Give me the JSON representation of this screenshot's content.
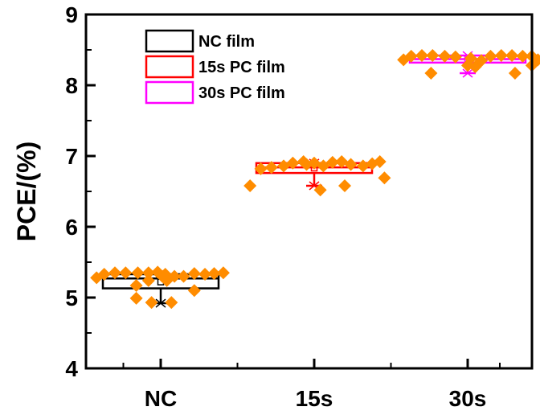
{
  "chart_data": {
    "type": "box",
    "title": "",
    "xlabel": "",
    "ylabel": "PCE/(%)",
    "ylim": [
      4,
      9
    ],
    "yticks": [
      "4",
      "5",
      "6",
      "7",
      "8",
      "9"
    ],
    "categories": [
      "NC",
      "15s",
      "30s"
    ],
    "grid": false,
    "legend_position": "top-left",
    "point_color": "#ff8c00",
    "series": [
      {
        "name": "NC film",
        "category": "NC",
        "color": "#000000",
        "box": {
          "q1": 5.13,
          "median": 5.27,
          "q3": 5.33,
          "whisker_low": 4.92,
          "whisker_high": 5.33,
          "mean": 5.22
        },
        "points": [
          [
            -0.42,
            5.28
          ],
          [
            -0.37,
            5.33
          ],
          [
            -0.3,
            5.35
          ],
          [
            -0.23,
            5.35
          ],
          [
            -0.15,
            5.35
          ],
          [
            -0.08,
            5.35
          ],
          [
            -0.02,
            5.36
          ],
          [
            0.03,
            5.33
          ],
          [
            0.09,
            5.3
          ],
          [
            0.15,
            5.3
          ],
          [
            0.22,
            5.34
          ],
          [
            0.29,
            5.33
          ],
          [
            0.35,
            5.34
          ],
          [
            0.41,
            5.35
          ],
          [
            -0.16,
            5.17
          ],
          [
            0.04,
            5.24
          ],
          [
            -0.08,
            5.24
          ],
          [
            0.22,
            5.1
          ],
          [
            -0.16,
            4.99
          ],
          [
            -0.06,
            4.93
          ],
          [
            0.07,
            4.93
          ],
          [
            0.01,
            5.3
          ]
        ]
      },
      {
        "name": "15s PC film",
        "category": "15s",
        "color": "#ff0000",
        "box": {
          "q1": 6.76,
          "median": 6.84,
          "q3": 6.9,
          "whisker_low": 6.58,
          "whisker_high": 6.9,
          "mean": 6.83
        },
        "points": [
          [
            -0.42,
            6.58
          ],
          [
            -0.35,
            6.82
          ],
          [
            -0.28,
            6.84
          ],
          [
            -0.2,
            6.86
          ],
          [
            -0.14,
            6.9
          ],
          [
            -0.07,
            6.92
          ],
          [
            0.0,
            6.9
          ],
          [
            0.06,
            6.86
          ],
          [
            0.12,
            6.91
          ],
          [
            0.18,
            6.92
          ],
          [
            0.24,
            6.88
          ],
          [
            0.32,
            6.86
          ],
          [
            0.38,
            6.89
          ],
          [
            0.43,
            6.92
          ],
          [
            0.04,
            6.52
          ],
          [
            0.2,
            6.58
          ],
          [
            0.46,
            6.69
          ],
          [
            -0.05,
            6.88
          ]
        ]
      },
      {
        "name": "30s PC film",
        "category": "30s",
        "color": "#ff00ff",
        "box": {
          "q1": 8.32,
          "median": 8.37,
          "q3": 8.42,
          "whisker_low": 8.17,
          "whisker_high": 8.42,
          "mean": 8.38
        },
        "points": [
          [
            -0.42,
            8.36
          ],
          [
            -0.37,
            8.41
          ],
          [
            -0.3,
            8.42
          ],
          [
            -0.23,
            8.42
          ],
          [
            -0.15,
            8.41
          ],
          [
            -0.08,
            8.4
          ],
          [
            0.02,
            8.38
          ],
          [
            0.09,
            8.35
          ],
          [
            0.15,
            8.41
          ],
          [
            0.22,
            8.42
          ],
          [
            0.29,
            8.42
          ],
          [
            0.36,
            8.41
          ],
          [
            0.42,
            8.41
          ],
          [
            0.46,
            8.36
          ],
          [
            -0.24,
            8.17
          ],
          [
            0.05,
            8.26
          ],
          [
            0.31,
            8.17
          ],
          [
            0.42,
            8.28
          ],
          [
            0.0,
            8.28
          ]
        ]
      }
    ]
  }
}
